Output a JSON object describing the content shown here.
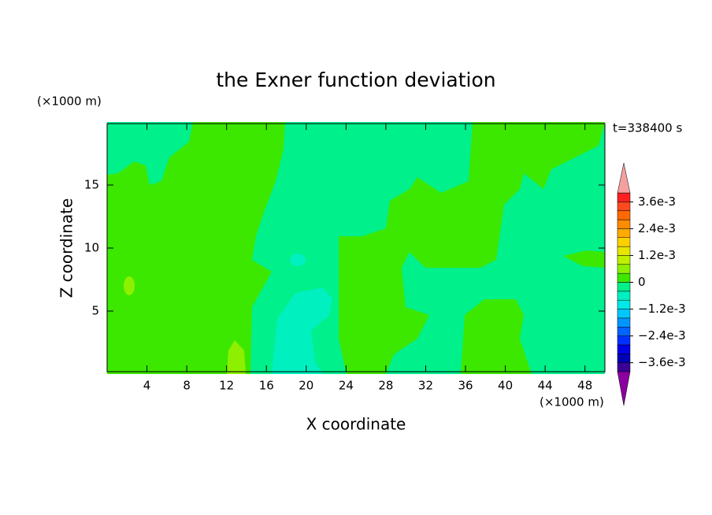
{
  "chart_data": {
    "type": "contour",
    "title": "the Exner function deviation",
    "x_label": "X coordinate",
    "y_label": "Z coordinate",
    "x_unit": "(×1000 m)",
    "y_unit": "(×1000 m)",
    "time_label": "t=338400 s",
    "xlim": [
      0,
      50
    ],
    "ylim": [
      0,
      20
    ],
    "xticks": [
      4,
      8,
      12,
      16,
      20,
      24,
      28,
      32,
      36,
      40,
      44,
      48
    ],
    "yticks": [
      5,
      10,
      15
    ],
    "colorbar": {
      "clim": [
        -0.004,
        0.004
      ],
      "ticks": [
        {
          "value": 0.0036,
          "label": "3.6e-3"
        },
        {
          "value": 0.0024,
          "label": "2.4e-3"
        },
        {
          "value": 0.0012,
          "label": "1.2e-3"
        },
        0,
        {
          "value": -0.0012,
          "label": "−1.2e-3"
        },
        {
          "value": -0.0024,
          "label": "−2.4e-3"
        },
        {
          "value": -0.0036,
          "label": "−3.6e-3"
        }
      ],
      "colors": [
        "#3c0096",
        "#0000b4",
        "#0000e6",
        "#0032ff",
        "#0064ff",
        "#0096ff",
        "#00c8ff",
        "#00e8e8",
        "#00f0c0",
        "#00f08c",
        "#3ce800",
        "#8cf000",
        "#c0f000",
        "#e6e600",
        "#ffd000",
        "#ffaa00",
        "#ff8c00",
        "#ff6a00",
        "#ff4a1e",
        "#ff2020"
      ],
      "under_color": "#8c00a0",
      "over_color": "#f4a0a0"
    }
  }
}
